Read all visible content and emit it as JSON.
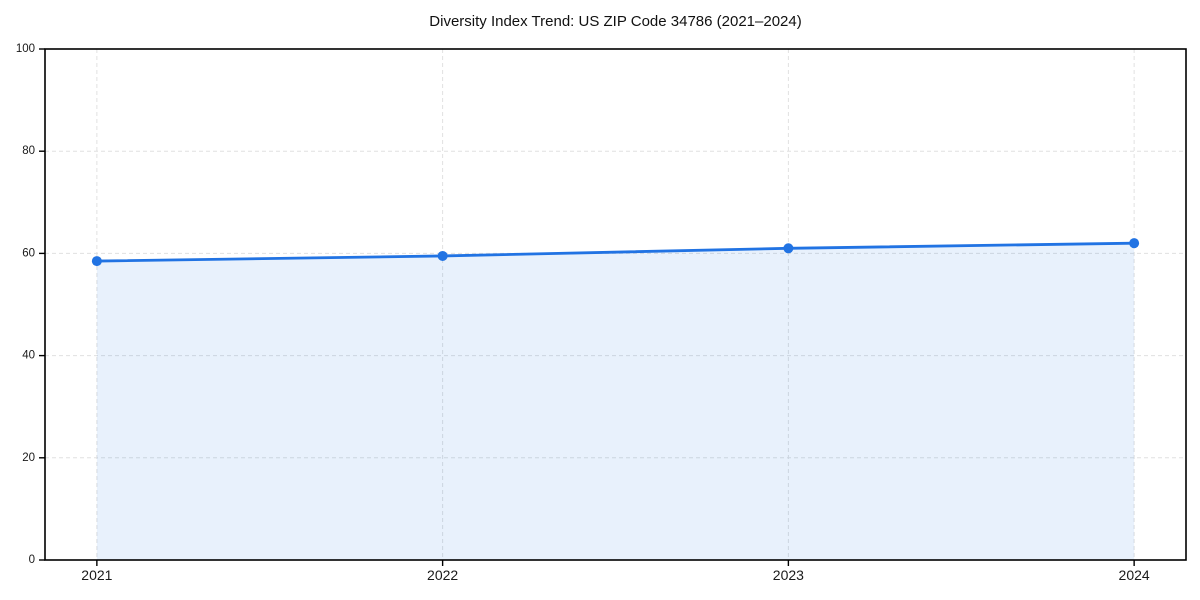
{
  "chart_data": {
    "type": "area",
    "title": "Diversity Index Trend: US ZIP Code 34786 (2021–2024)",
    "categories": [
      "2021",
      "2022",
      "2023",
      "2024"
    ],
    "series": [
      {
        "name": "Diversity Index",
        "values": [
          58.5,
          59.5,
          61,
          62
        ]
      }
    ],
    "xlabel": "",
    "ylabel": "",
    "ylim": [
      0,
      100
    ],
    "yticks": [
      0,
      20,
      40,
      60,
      80,
      100
    ],
    "grid": "dashed-both-axes",
    "legend": "none",
    "marker": "circle",
    "colors": {
      "line": "#2173e3",
      "marker": "#2173e3",
      "fill": "#2173e3",
      "fill_opacity": 0.1,
      "grid": "#e0e0e0",
      "spine": "#000000",
      "tick_text": "#1a1a1a",
      "title_text": "#111111",
      "background": "#ffffff"
    }
  }
}
